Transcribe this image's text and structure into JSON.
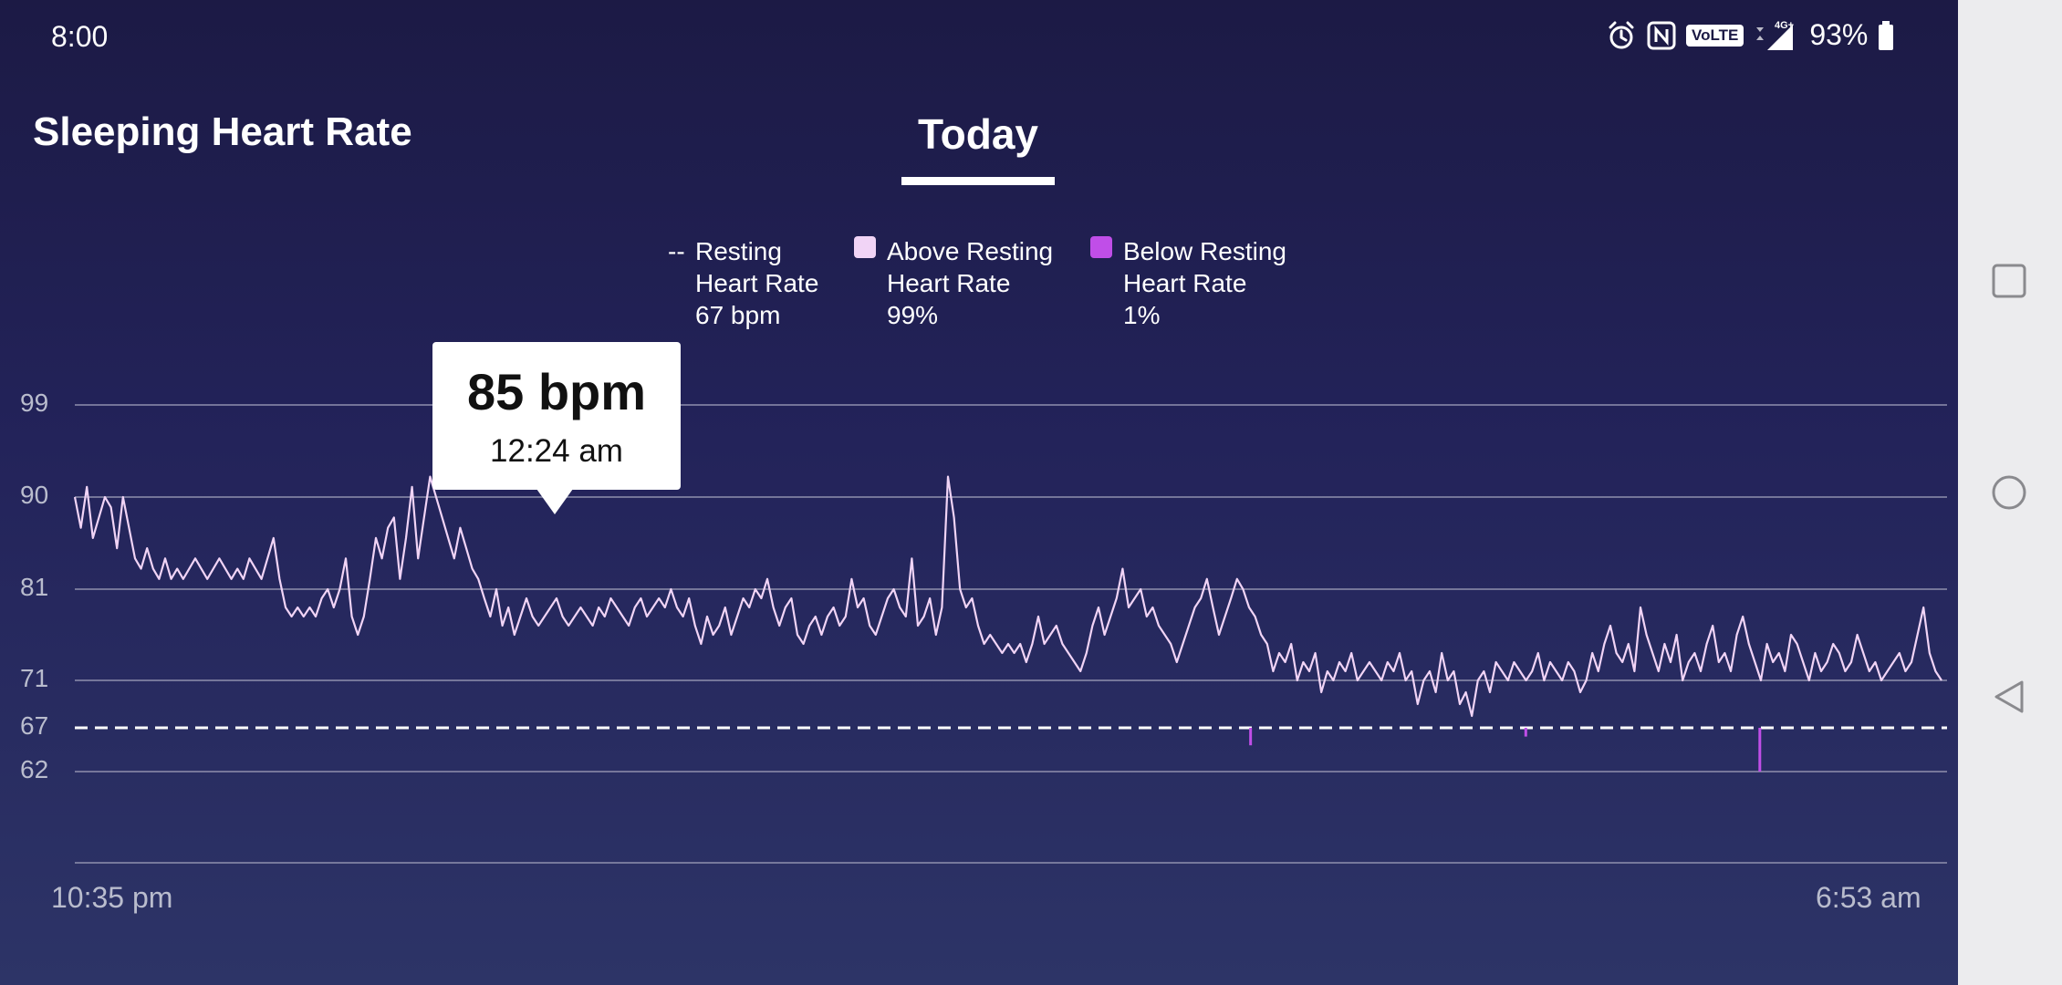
{
  "status_bar": {
    "time": "8:00",
    "network_badge": "VoLTE",
    "signal_label": "4G+",
    "battery": "93%"
  },
  "header": {
    "title": "Sleeping Heart Rate",
    "tab_label": "Today"
  },
  "legend": {
    "resting": {
      "marker": "--",
      "line1": "Resting",
      "line2": "Heart Rate",
      "value": "67 bpm"
    },
    "above": {
      "line1": "Above Resting",
      "line2": "Heart Rate",
      "value": "99%",
      "color": "#f1d4f6"
    },
    "below": {
      "line1": "Below Resting",
      "line2": "Heart Rate",
      "value": "1%",
      "color": "#c04ee8"
    }
  },
  "tooltip": {
    "value": "85 bpm",
    "time": "12:24 am"
  },
  "colors": {
    "background_top": "#1c1a45",
    "background_bottom": "#2d3467",
    "line_above": "#f1d4f6",
    "line_below": "#c04ee8",
    "grid": "#8f90ad"
  },
  "icons": [
    "alarm-icon",
    "nfc-icon",
    "signal-icon",
    "battery-icon",
    "square-nav-icon",
    "circle-nav-icon",
    "back-nav-icon"
  ],
  "chart_data": {
    "type": "line",
    "y_ticks": [
      "99",
      "90",
      "81",
      "71",
      "67",
      "62"
    ],
    "y_tick_values": [
      99,
      90,
      81,
      71,
      67,
      62
    ],
    "x_start_label": "10:35 pm",
    "x_end_label": "6:53 am",
    "resting_heart_rate": 67,
    "grid": true,
    "series": [
      {
        "name": "Sleeping Heart Rate",
        "x_range": [
          "10:35 pm",
          "6:53 am"
        ],
        "values": [
          90,
          87,
          91,
          86,
          88,
          90,
          89,
          85,
          90,
          87,
          84,
          83,
          85,
          83,
          82,
          84,
          82,
          83,
          82,
          83,
          84,
          83,
          82,
          83,
          84,
          83,
          82,
          83,
          82,
          84,
          83,
          82,
          84,
          86,
          82,
          79,
          78,
          79,
          78,
          79,
          78,
          80,
          81,
          79,
          81,
          84,
          78,
          76,
          78,
          82,
          86,
          84,
          87,
          88,
          82,
          86,
          91,
          84,
          88,
          92,
          90,
          88,
          86,
          84,
          87,
          85,
          83,
          82,
          80,
          78,
          81,
          77,
          79,
          76,
          78,
          80,
          78,
          77,
          78,
          79,
          80,
          78,
          77,
          78,
          79,
          78,
          77,
          79,
          78,
          80,
          79,
          78,
          77,
          79,
          80,
          78,
          79,
          80,
          79,
          81,
          79,
          78,
          80,
          77,
          75,
          78,
          76,
          77,
          79,
          76,
          78,
          80,
          79,
          81,
          80,
          82,
          79,
          77,
          79,
          80,
          76,
          75,
          77,
          78,
          76,
          78,
          79,
          77,
          78,
          82,
          79,
          80,
          77,
          76,
          78,
          80,
          81,
          79,
          78,
          84,
          77,
          78,
          80,
          76,
          79,
          92,
          88,
          81,
          79,
          80,
          77,
          75,
          76,
          75,
          74,
          75,
          74,
          75,
          73,
          75,
          78,
          75,
          76,
          77,
          75,
          74,
          73,
          72,
          74,
          77,
          79,
          76,
          78,
          80,
          83,
          79,
          80,
          81,
          78,
          79,
          77,
          76,
          75,
          73,
          75,
          77,
          79,
          80,
          82,
          79,
          76,
          78,
          80,
          82,
          81,
          79,
          78,
          76,
          75,
          72,
          74,
          73,
          75,
          71,
          73,
          72,
          74,
          70,
          72,
          71,
          73,
          72,
          74,
          71,
          72,
          73,
          72,
          71,
          73,
          72,
          74,
          71,
          72,
          69,
          71,
          72,
          70,
          74,
          71,
          72,
          69,
          70,
          68,
          71,
          72,
          70,
          73,
          72,
          71,
          73,
          72,
          71,
          72,
          74,
          71,
          73,
          72,
          71,
          73,
          72,
          70,
          71,
          74,
          72,
          75,
          77,
          74,
          73,
          75,
          72,
          79,
          76,
          74,
          72,
          75,
          73,
          76,
          71,
          73,
          74,
          72,
          75,
          77,
          73,
          74,
          72,
          76,
          78,
          75,
          73,
          71,
          75,
          73,
          74,
          72,
          76,
          75,
          73,
          71,
          74,
          72,
          73,
          75,
          74,
          72,
          73,
          76,
          74,
          72,
          73,
          71,
          72,
          73,
          74,
          72,
          73,
          76,
          79,
          74,
          72,
          71
        ]
      }
    ]
  }
}
